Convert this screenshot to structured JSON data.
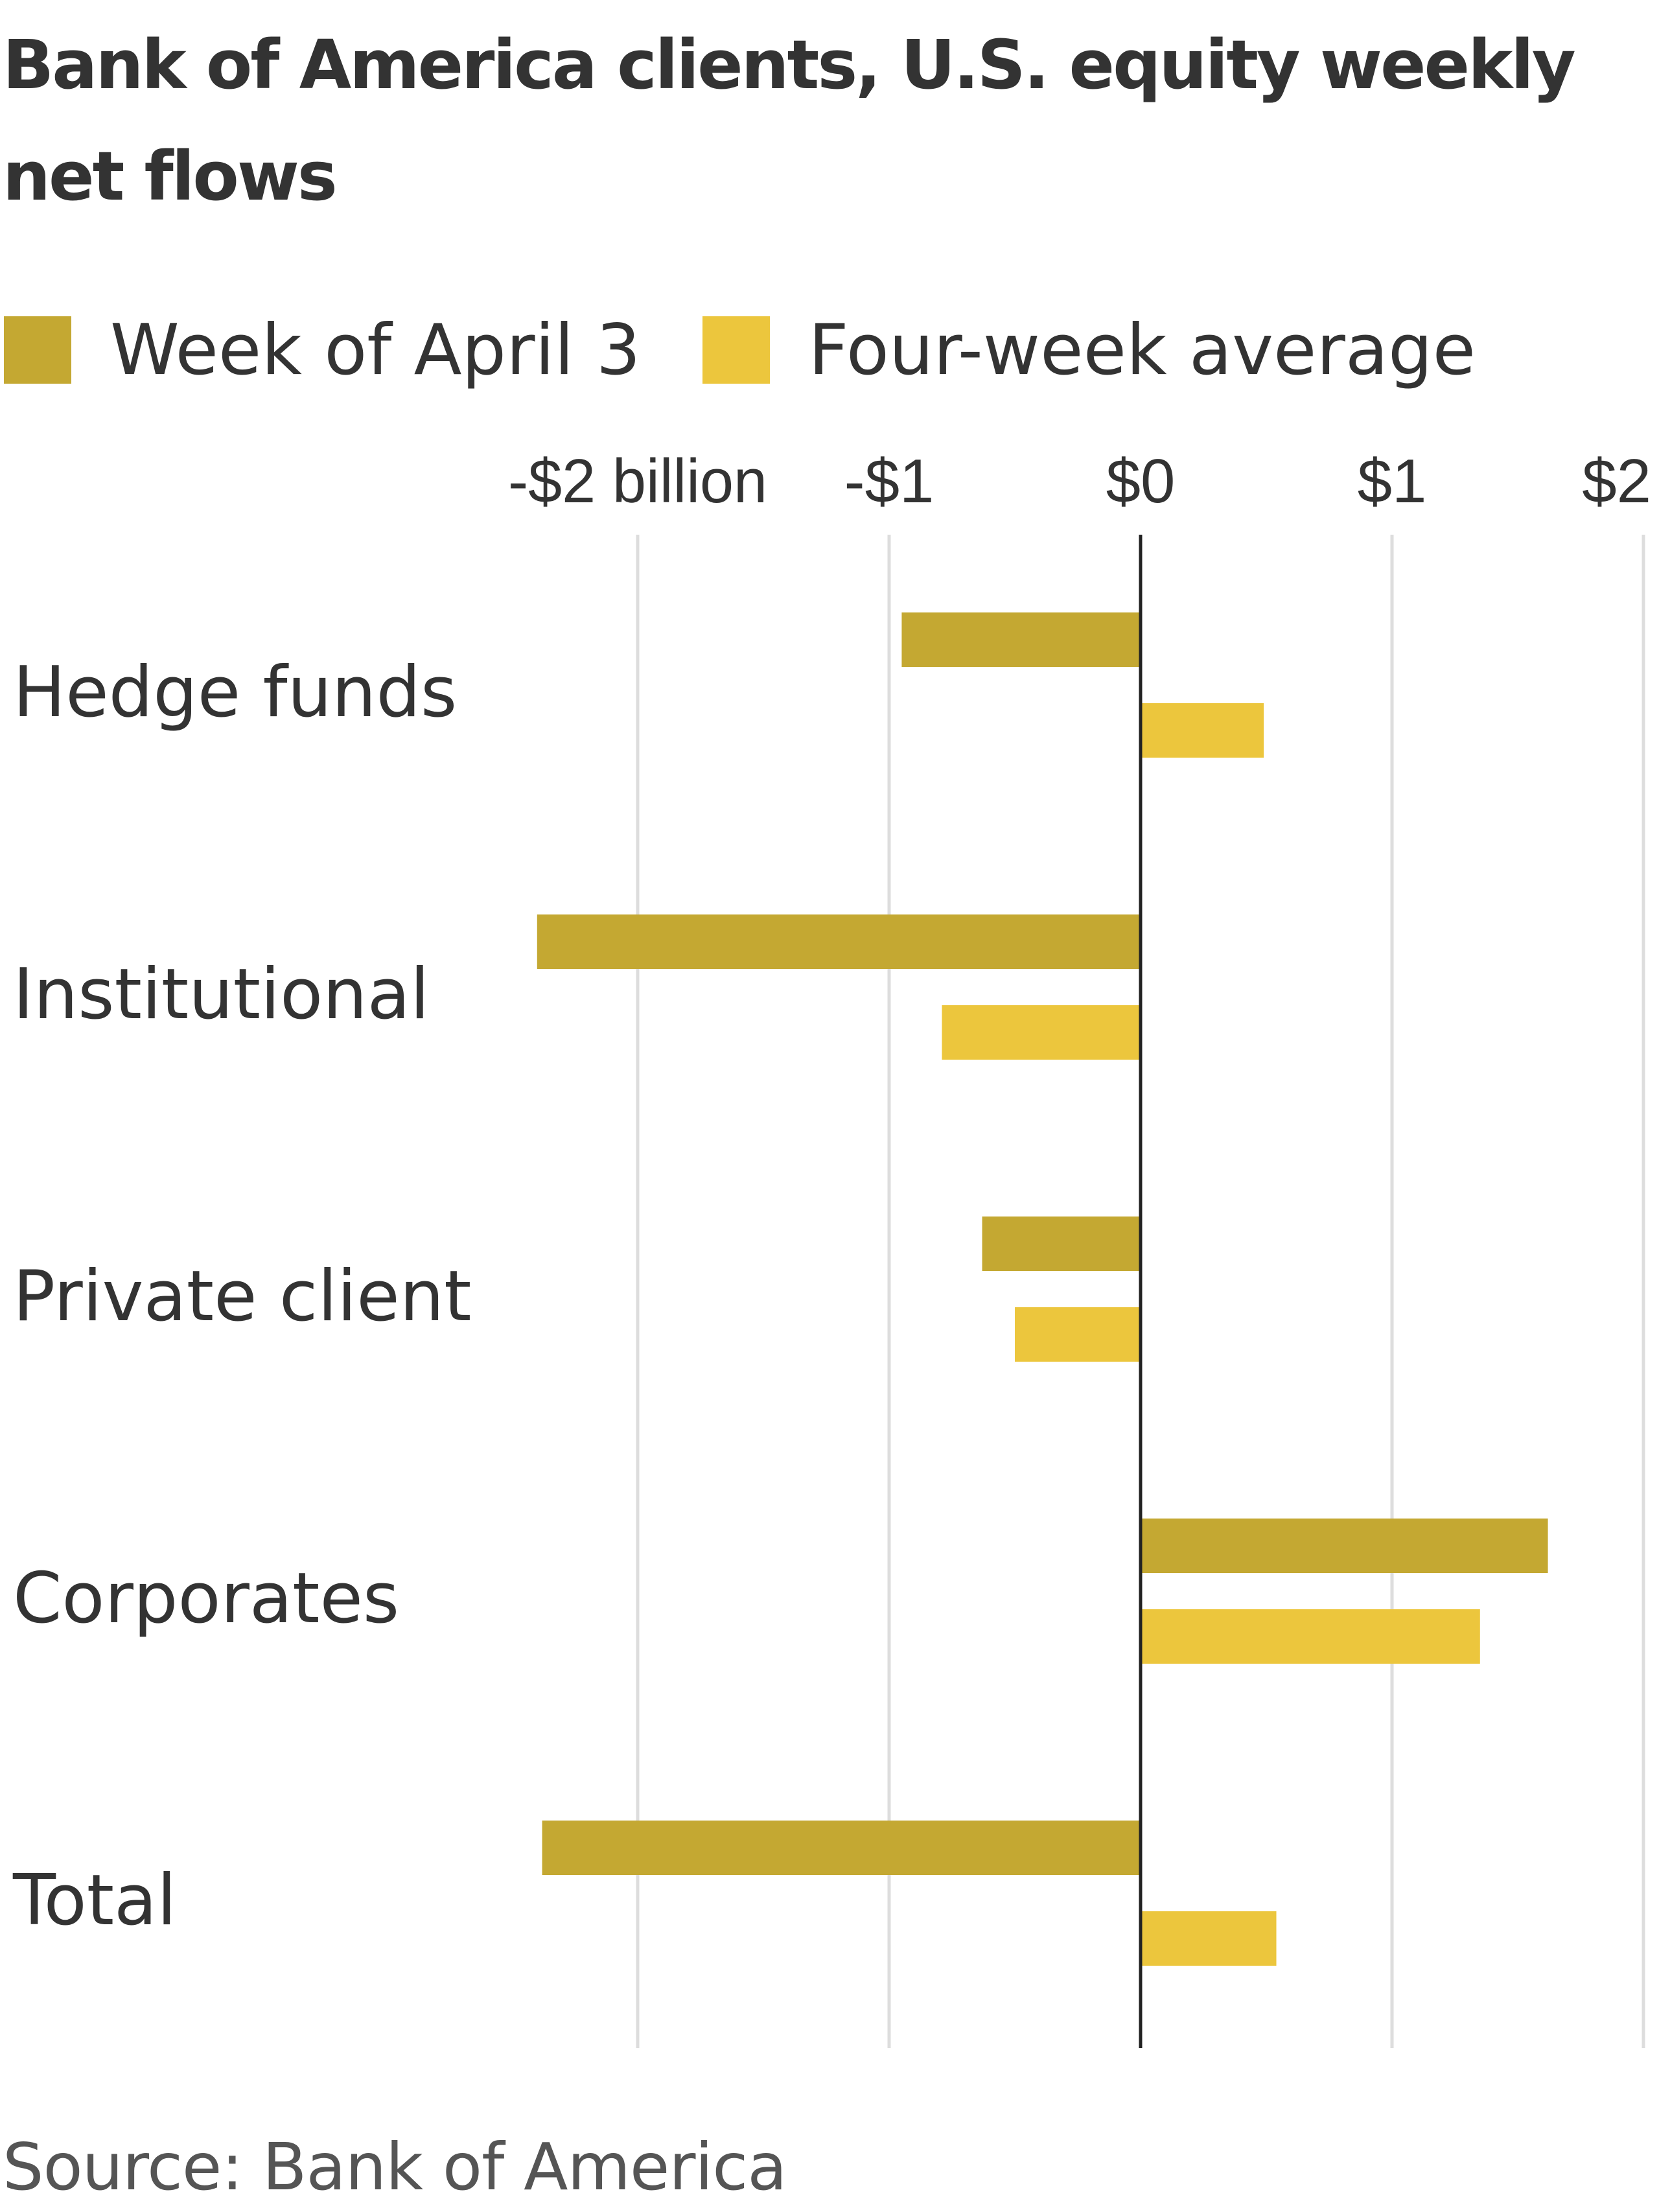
{
  "title": "Bank of America clients, U.S. equity weekly net flows",
  "legend": {
    "items": [
      {
        "label": "Week of April 3",
        "color": "#c4a832"
      },
      {
        "label": "Four-week average",
        "color": "#ecc63d"
      }
    ]
  },
  "source": "Source: Bank of America",
  "colors": {
    "week": "#c4a832",
    "average": "#ecc63d",
    "grid": "#dddddd",
    "zero_line": "#222222",
    "text": "#333333"
  },
  "chart_data": {
    "type": "bar",
    "orientation": "horizontal",
    "categories": [
      "Hedge funds",
      "Institutional",
      "Private client",
      "Corporates",
      "Total"
    ],
    "series": [
      {
        "name": "Week of April 3",
        "values": [
          -0.95,
          -2.4,
          -0.63,
          1.62,
          -2.38
        ]
      },
      {
        "name": "Four-week average",
        "values": [
          0.49,
          -0.79,
          -0.5,
          1.35,
          0.54
        ]
      }
    ],
    "xlim": [
      -2.0,
      2.0
    ],
    "xticks": [
      {
        "value": -2,
        "label": "-$2 billion"
      },
      {
        "value": -1,
        "label": "-$1"
      },
      {
        "value": 0,
        "label": "$0"
      },
      {
        "value": 1,
        "label": "$1"
      },
      {
        "value": 2,
        "label": "$2"
      }
    ],
    "grid": true,
    "legend_position": "top-left"
  }
}
